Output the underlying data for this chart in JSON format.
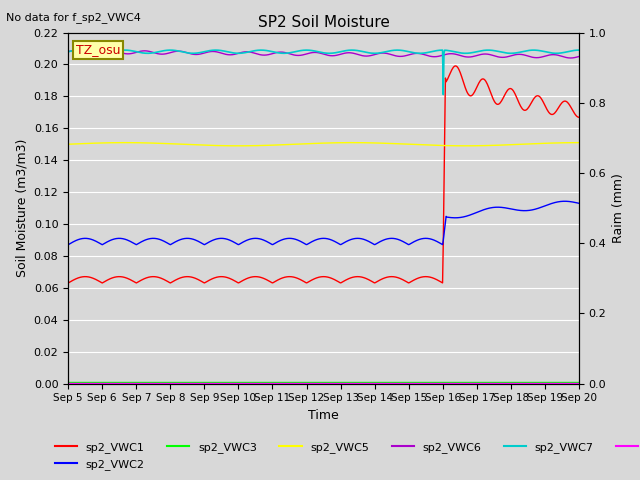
{
  "title": "SP2 Soil Moisture",
  "no_data_text": "No data for f_sp2_VWC4",
  "xlabel": "Time",
  "ylabel_left": "Soil Moisture (m3/m3)",
  "ylabel_right": "Raim (mm)",
  "ylim_left": [
    0.0,
    0.22
  ],
  "ylim_right": [
    0.0,
    1.0
  ],
  "n_days": 15,
  "rain_day": 11.0,
  "tz_label": "TZ_osu",
  "colors": {
    "vwc1": "#ff0000",
    "vwc2": "#0000ff",
    "vwc3": "#00ff00",
    "vwc5": "#ffff00",
    "vwc6": "#aa00cc",
    "vwc7": "#00cccc",
    "rain": "#ff00ff"
  },
  "fig_bg": "#d8d8d8",
  "plot_bg": "#d8d8d8",
  "yticks_left": [
    0.0,
    0.02,
    0.04,
    0.06,
    0.08,
    0.1,
    0.12,
    0.14,
    0.16,
    0.18,
    0.2,
    0.22
  ],
  "yticks_right": [
    0.0,
    0.2,
    0.4,
    0.6,
    0.8,
    1.0
  ]
}
